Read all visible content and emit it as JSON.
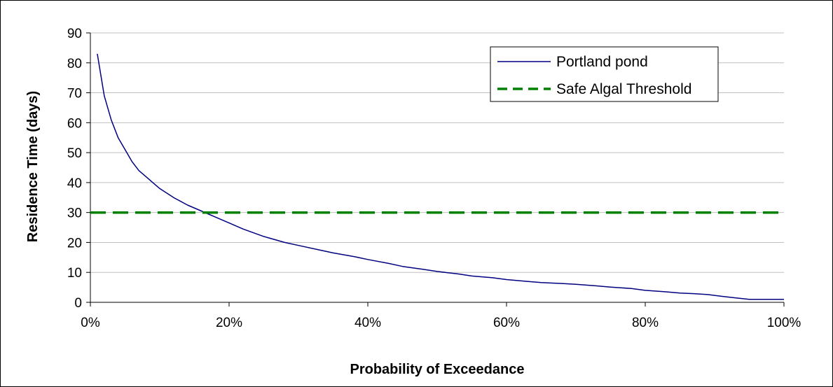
{
  "chart_data": {
    "type": "line",
    "title": "",
    "xlabel": "Probability of Exceedance",
    "ylabel": "Residence Time (days)",
    "xlim": [
      0,
      100
    ],
    "ylim": [
      0,
      90
    ],
    "x_ticks": [
      "0%",
      "20%",
      "40%",
      "60%",
      "80%",
      "100%"
    ],
    "y_ticks": [
      "0",
      "10",
      "20",
      "30",
      "40",
      "50",
      "60",
      "70",
      "80",
      "90"
    ],
    "grid": "horizontal",
    "legend_position": "top-right",
    "series": [
      {
        "name": "Portland pond",
        "color": "#000080",
        "style": "solid",
        "x": [
          1,
          2,
          3,
          4,
          5,
          6,
          7,
          8,
          9,
          10,
          12,
          14,
          16,
          18,
          20,
          22,
          25,
          28,
          30,
          33,
          35,
          38,
          40,
          43,
          45,
          48,
          50,
          53,
          55,
          58,
          60,
          63,
          65,
          68,
          70,
          73,
          75,
          78,
          80,
          83,
          85,
          87,
          89,
          91,
          93,
          95,
          100
        ],
        "y": [
          83,
          69,
          61,
          55,
          51,
          47,
          44,
          42,
          40,
          38,
          35,
          32.5,
          30.5,
          28.5,
          26.5,
          24.5,
          22,
          20,
          19,
          17.5,
          16.5,
          15.3,
          14.3,
          13,
          12,
          11,
          10.3,
          9.5,
          8.8,
          8.2,
          7.6,
          7,
          6.6,
          6.3,
          6,
          5.5,
          5.1,
          4.6,
          4,
          3.5,
          3.1,
          2.9,
          2.6,
          2,
          1.5,
          1,
          1
        ]
      },
      {
        "name": "Safe Algal Threshold",
        "color": "#008000",
        "style": "dashed",
        "x": [
          0,
          100
        ],
        "y": [
          30,
          30
        ]
      }
    ]
  }
}
